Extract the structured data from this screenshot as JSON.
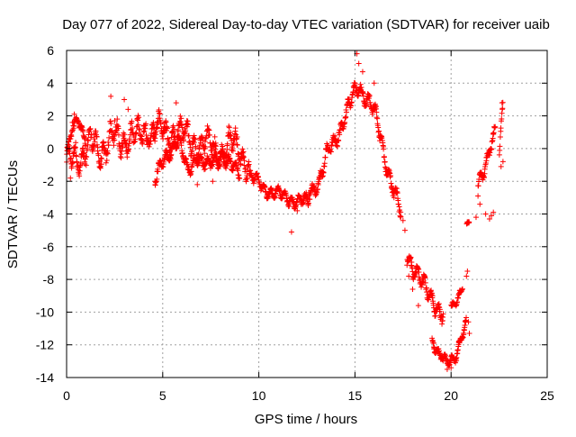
{
  "chart_data": {
    "type": "scatter",
    "title": "Day 077 of 2022, Sidereal Day-to-day VTEC variation (SDTVAR) for receiver uaib",
    "xlabel": "GPS time / hours",
    "ylabel": "SDTVAR / TECUs",
    "xlim": [
      0,
      25
    ],
    "ylim": [
      -14,
      6
    ],
    "xticks": [
      0,
      5,
      10,
      15,
      20,
      25
    ],
    "yticks": [
      6,
      4,
      2,
      0,
      -2,
      -4,
      -6,
      -8,
      -10,
      -12,
      -14
    ],
    "grid": true,
    "marker": "+",
    "series_color": "#ff0000",
    "series": [
      {
        "name": "SDTVAR",
        "curves": [
          {
            "lo": 0.0,
            "hi": 4.6,
            "key": [
              [
                0.0,
                -1.3
              ],
              [
                0.4,
                -0.2
              ],
              [
                0.8,
                -0.6
              ],
              [
                1.3,
                0.3
              ],
              [
                1.8,
                -0.2
              ],
              [
                2.3,
                0.7
              ],
              [
                2.8,
                0.3
              ],
              [
                3.3,
                1.0
              ],
              [
                3.8,
                0.6
              ],
              [
                4.3,
                1.2
              ],
              [
                4.6,
                0.9
              ]
            ],
            "amp": 1.4
          },
          {
            "lo": 0.0,
            "hi": 1.0,
            "key": [
              [
                0.0,
                -0.5
              ],
              [
                0.3,
                1.2
              ],
              [
                0.6,
                2.0
              ],
              [
                1.0,
                0.4
              ]
            ],
            "amp": 0.5
          },
          {
            "lo": 4.5,
            "hi": 9.5,
            "key": [
              [
                4.5,
                1.8
              ],
              [
                5.2,
                0.6
              ],
              [
                5.8,
                1.4
              ],
              [
                6.5,
                0.2
              ],
              [
                7.2,
                0.5
              ],
              [
                7.8,
                -0.4
              ],
              [
                8.5,
                0.4
              ],
              [
                9.0,
                -0.2
              ],
              [
                9.5,
                -0.9
              ]
            ],
            "amp": 1.3
          },
          {
            "lo": 4.6,
            "hi": 9.0,
            "key": [
              [
                4.6,
                -1.8
              ],
              [
                5.2,
                -0.6
              ],
              [
                5.8,
                0.8
              ],
              [
                6.3,
                -1.6
              ],
              [
                6.8,
                -0.3
              ],
              [
                7.4,
                -1.2
              ],
              [
                8.0,
                -0.2
              ],
              [
                8.5,
                -1.0
              ],
              [
                9.0,
                -1.6
              ]
            ],
            "amp": 0.7
          },
          {
            "lo": 9.5,
            "hi": 12.6,
            "key": [
              [
                9.5,
                -1.6
              ],
              [
                10.2,
                -2.4
              ],
              [
                10.8,
                -2.7
              ],
              [
                11.4,
                -3.0
              ],
              [
                12.0,
                -3.2
              ],
              [
                12.6,
                -3.3
              ]
            ],
            "amp": 0.6
          },
          {
            "lo": 12.6,
            "hi": 15.3,
            "key": [
              [
                12.6,
                -2.8
              ],
              [
                13.1,
                -2.0
              ],
              [
                13.5,
                -0.6
              ],
              [
                14.0,
                0.6
              ],
              [
                14.5,
                2.0
              ],
              [
                15.0,
                3.4
              ],
              [
                15.3,
                4.0
              ]
            ],
            "amp": 0.8
          },
          {
            "lo": 15.3,
            "hi": 17.4,
            "key": [
              [
                15.3,
                3.6
              ],
              [
                15.7,
                3.0
              ],
              [
                16.1,
                1.8
              ],
              [
                16.5,
                -0.2
              ],
              [
                17.0,
                -2.5
              ],
              [
                17.4,
                -4.1
              ]
            ],
            "amp": 0.8
          },
          {
            "lo": 17.7,
            "hi": 19.6,
            "key": [
              [
                17.7,
                -6.4
              ],
              [
                18.2,
                -7.6
              ],
              [
                18.7,
                -8.7
              ],
              [
                19.2,
                -9.4
              ],
              [
                19.6,
                -10.4
              ]
            ],
            "amp": 0.9
          },
          {
            "lo": 19.0,
            "hi": 20.8,
            "key": [
              [
                19.0,
                -11.6
              ],
              [
                19.4,
                -12.6
              ],
              [
                19.8,
                -13.2
              ],
              [
                20.2,
                -12.8
              ],
              [
                20.5,
                -11.6
              ],
              [
                20.8,
                -10.6
              ]
            ],
            "amp": 0.5
          },
          {
            "lo": 20.0,
            "hi": 20.6,
            "key": [
              [
                20.0,
                -9.8
              ],
              [
                20.3,
                -9.2
              ],
              [
                20.6,
                -8.4
              ]
            ],
            "amp": 0.4
          },
          {
            "lo": 20.8,
            "hi": 20.95,
            "key": [
              [
                20.8,
                -4.7
              ],
              [
                20.95,
                -4.5
              ]
            ],
            "amp": 0.2
          },
          {
            "lo": 21.4,
            "hi": 22.3,
            "key": [
              [
                21.4,
                -2.0
              ],
              [
                21.7,
                -1.2
              ],
              [
                22.0,
                -0.2
              ],
              [
                22.3,
                0.8
              ]
            ],
            "amp": 0.7
          },
          {
            "lo": 22.5,
            "hi": 22.7,
            "key": [
              [
                22.5,
                -0.6
              ],
              [
                22.6,
                1.4
              ],
              [
                22.7,
                2.9
              ]
            ],
            "amp": 0.3
          }
        ],
        "points": [
          [
            0.2,
            -1.8
          ],
          [
            0.3,
            1.6
          ],
          [
            0.4,
            2.1
          ],
          [
            2.3,
            3.2
          ],
          [
            2.5,
            1.7
          ],
          [
            3.0,
            3.0
          ],
          [
            3.2,
            2.4
          ],
          [
            4.6,
            -2.0
          ],
          [
            5.7,
            2.8
          ],
          [
            6.8,
            -2.2
          ],
          [
            7.6,
            -2.0
          ],
          [
            11.7,
            -5.1
          ],
          [
            12.0,
            -3.8
          ],
          [
            15.1,
            5.8
          ],
          [
            15.2,
            5.2
          ],
          [
            15.4,
            4.7
          ],
          [
            16.0,
            4.0
          ],
          [
            17.5,
            -4.4
          ],
          [
            17.6,
            -5.0
          ],
          [
            17.8,
            -7.8
          ],
          [
            18.0,
            -8.6
          ],
          [
            18.3,
            -9.6
          ],
          [
            19.1,
            -11.9
          ],
          [
            19.5,
            -12.8
          ],
          [
            19.8,
            -13.5
          ],
          [
            20.0,
            -13.4
          ],
          [
            20.4,
            -11.8
          ],
          [
            20.8,
            -7.8
          ],
          [
            20.85,
            -7.5
          ],
          [
            20.9,
            -10.6
          ],
          [
            20.95,
            -11.3
          ],
          [
            21.3,
            -4.2
          ],
          [
            21.4,
            -2.9
          ],
          [
            21.5,
            -3.4
          ],
          [
            21.8,
            -4.0
          ],
          [
            22.0,
            -4.3
          ],
          [
            22.1,
            -4.1
          ],
          [
            22.2,
            -3.9
          ],
          [
            22.6,
            -1.1
          ],
          [
            22.7,
            -0.8
          ],
          [
            22.65,
            2.8
          ]
        ]
      }
    ]
  }
}
